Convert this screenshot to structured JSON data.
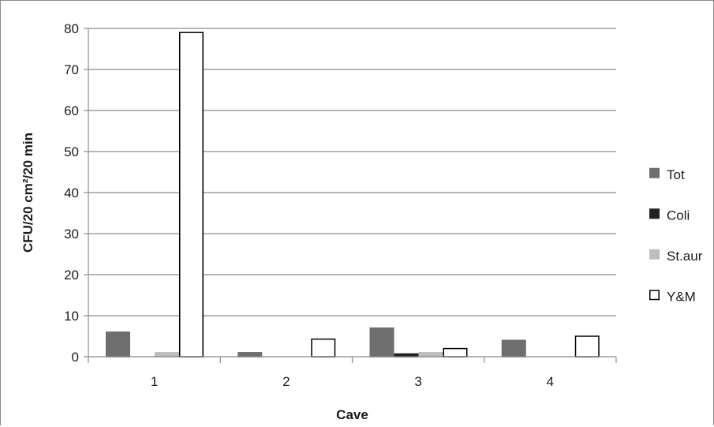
{
  "chart_data": {
    "type": "bar",
    "title": "",
    "xlabel": "Cave",
    "ylabel": "CFU/20 cm²/20 min",
    "categories": [
      "1",
      "2",
      "3",
      "4"
    ],
    "ylim": [
      0,
      80
    ],
    "yticks": [
      0,
      10,
      20,
      30,
      40,
      50,
      60,
      70,
      80
    ],
    "grid": true,
    "legend_position": "right",
    "series": [
      {
        "name": "Tot",
        "values": [
          6,
          1,
          7,
          4
        ],
        "color": "#6e6e6e",
        "stroke": "#6e6e6e"
      },
      {
        "name": "Coli",
        "values": [
          0,
          0,
          0.7,
          0
        ],
        "color": "#222222",
        "stroke": "#222222"
      },
      {
        "name": "St.aur",
        "values": [
          1,
          0,
          1,
          0
        ],
        "color": "#bdbdbd",
        "stroke": "#bdbdbd"
      },
      {
        "name": "Y&M",
        "values": [
          79,
          4.3,
          2,
          5
        ],
        "color": "#ffffff",
        "stroke": "#000000"
      }
    ]
  }
}
